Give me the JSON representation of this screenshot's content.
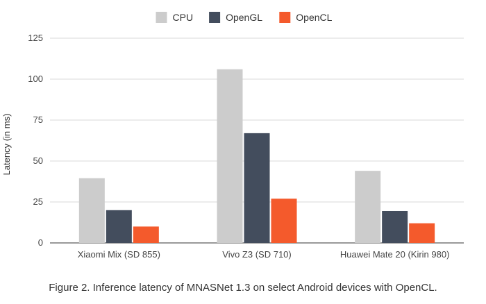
{
  "chart_data": {
    "type": "bar",
    "categories": [
      "Xiaomi Mix (SD 855)",
      "Vivo Z3 (SD 710)",
      "Huawei Mate 20 (Kirin 980)"
    ],
    "series": [
      {
        "name": "CPU",
        "values": [
          39.5,
          106,
          44
        ],
        "color": "#cccccc"
      },
      {
        "name": "OpenGL",
        "values": [
          20,
          67,
          19.5
        ],
        "color": "#434d5d"
      },
      {
        "name": "OpenCL",
        "values": [
          10,
          27,
          12
        ],
        "color": "#f45a2c"
      }
    ],
    "ylabel": "Latency (in ms)",
    "xlabel": "",
    "ylim": [
      0,
      125
    ],
    "yticks": [
      0,
      25,
      50,
      75,
      100,
      125
    ],
    "grid": true,
    "legend_position": "top-center"
  },
  "caption": "Figure 2. Inference latency of MNASNet 1.3 on select Android devices with OpenCL."
}
